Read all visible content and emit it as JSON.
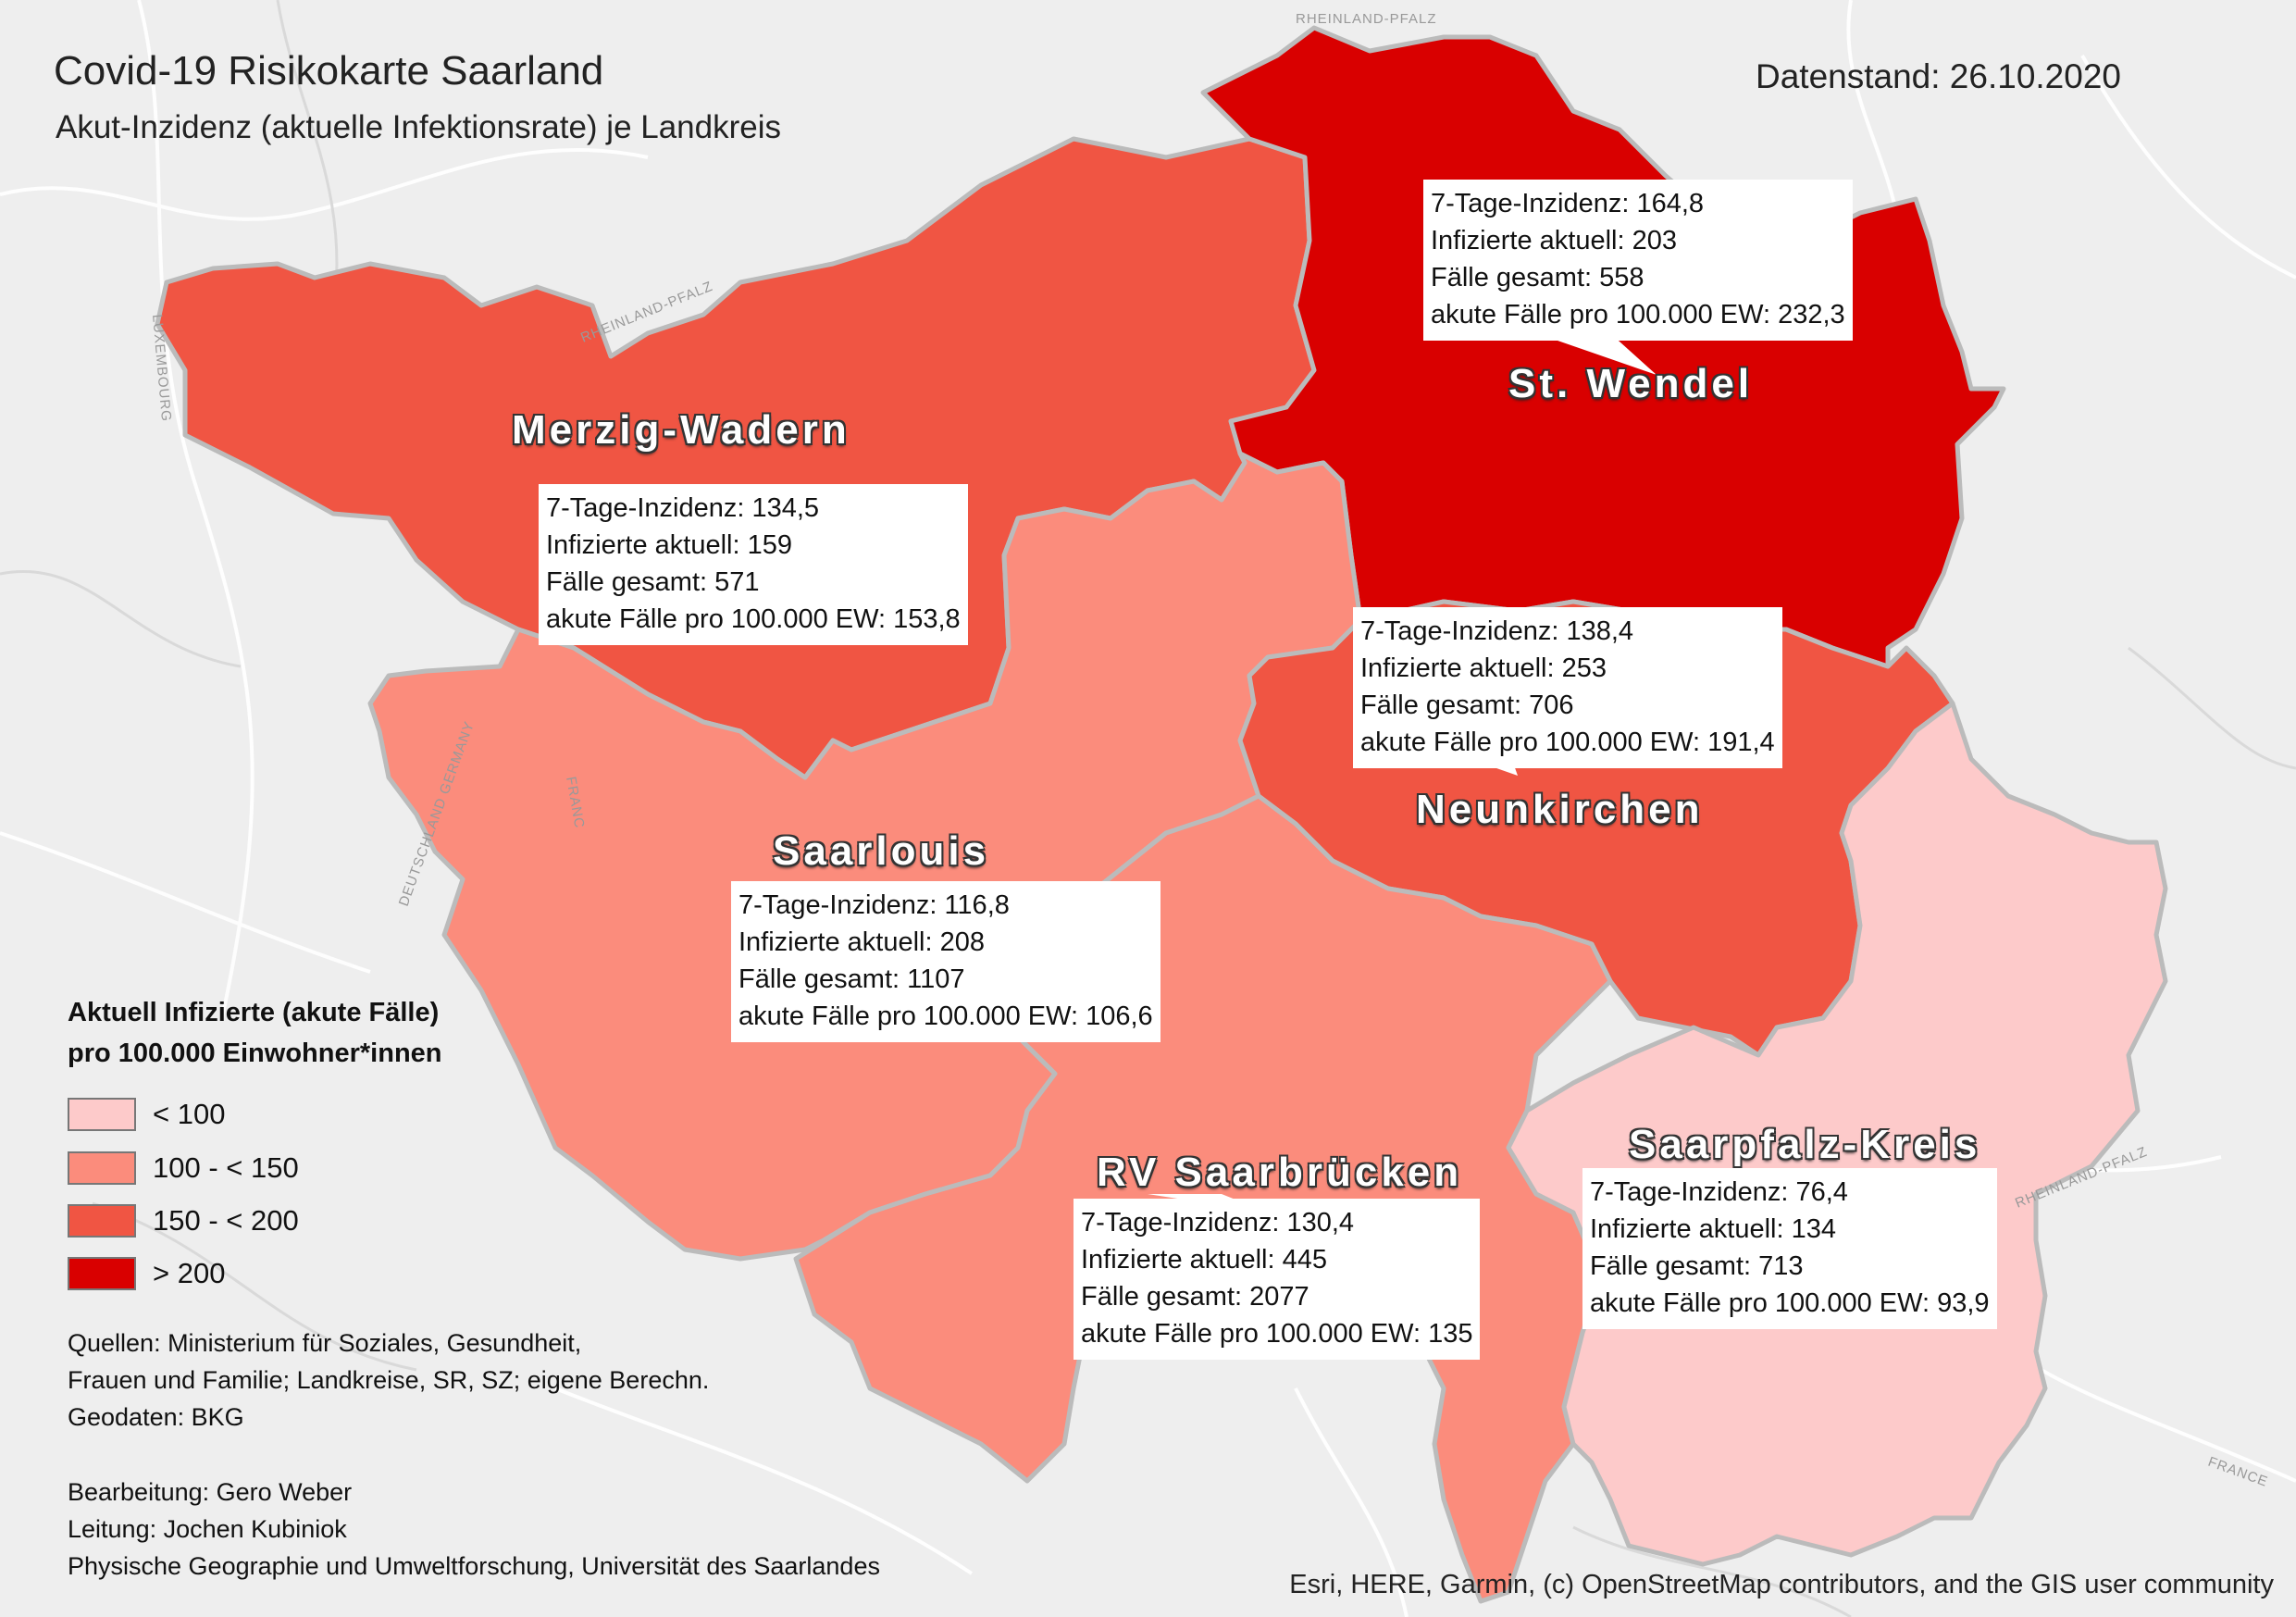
{
  "header": {
    "title": "Covid-19 Risikokarte Saarland",
    "subtitle": "Akut-Inzidenz (aktuelle Infektionsrate) je Landkreis",
    "date": "Datenstand: 26.10.2020"
  },
  "colors": {
    "below_100": "#fdcaca",
    "100_150": "#fb8c7c",
    "150_200": "#f05543",
    "above_200": "#d90000",
    "background": "#eeeeee",
    "border": "#bbbbbb"
  },
  "districts": [
    {
      "id": "merzig-wadern",
      "name": "Merzig-Wadern",
      "class": "150_200",
      "incidence_label": "7-Tage-Inzidenz: 134,5",
      "infected_label": "Infizierte aktuell: 159",
      "total_label": "Fälle gesamt: 571",
      "per100k_label": "akute Fälle pro 100.000 EW: 153,8"
    },
    {
      "id": "st-wendel",
      "name": "St. Wendel",
      "class": "above_200",
      "incidence_label": "7-Tage-Inzidenz: 164,8",
      "infected_label": "Infizierte aktuell: 203",
      "total_label": "Fälle gesamt: 558",
      "per100k_label": "akute Fälle pro 100.000 EW: 232,3"
    },
    {
      "id": "saarlouis",
      "name": "Saarlouis",
      "class": "100_150",
      "incidence_label": "7-Tage-Inzidenz: 116,8",
      "infected_label": "Infizierte aktuell: 208",
      "total_label": "Fälle gesamt: 1107",
      "per100k_label": "akute Fälle pro 100.000 EW: 106,6"
    },
    {
      "id": "neunkirchen",
      "name": "Neunkirchen",
      "class": "150_200",
      "incidence_label": "7-Tage-Inzidenz: 138,4",
      "infected_label": "Infizierte aktuell: 253",
      "total_label": "Fälle gesamt: 706",
      "per100k_label": "akute Fälle pro 100.000 EW: 191,4"
    },
    {
      "id": "rv-saarbruecken",
      "name": "RV Saarbrücken",
      "class": "100_150",
      "incidence_label": "7-Tage-Inzidenz: 130,4",
      "infected_label": "Infizierte aktuell: 445",
      "total_label": "Fälle gesamt: 2077",
      "per100k_label": "akute Fälle pro 100.000 EW: 135"
    },
    {
      "id": "saarpfalz-kreis",
      "name": "Saarpfalz-Kreis",
      "class": "below_100",
      "incidence_label": "7-Tage-Inzidenz: 76,4",
      "infected_label": "Infizierte aktuell: 134",
      "total_label": "Fälle gesamt: 713",
      "per100k_label": "akute Fälle pro 100.000 EW: 93,9"
    }
  ],
  "legend": {
    "title_line1": "Aktuell Infizierte (akute Fälle)",
    "title_line2": "pro 100.000 Einwohner*innen",
    "items": [
      {
        "label": "< 100",
        "color": "#fdcaca"
      },
      {
        "label": "100 - < 150",
        "color": "#fb8c7c"
      },
      {
        "label": "150 - < 200",
        "color": "#f05543"
      },
      {
        "label": "> 200",
        "color": "#d90000"
      }
    ]
  },
  "sources": {
    "line1": "Quellen: Ministerium für Soziales, Gesundheit,",
    "line2": "Frauen und Familie; Landkreise, SR, SZ; eigene Berechn.",
    "line3": "Geodaten: BKG"
  },
  "credits": {
    "line1": "Bearbeitung: Gero Weber",
    "line2": "Leitung: Jochen Kubiniok",
    "line3": "Physische Geographie und Umweltforschung, Universität des Saarlandes"
  },
  "attribution": "Esri, HERE, Garmin, (c) OpenStreetMap contributors, and the GIS user community",
  "basemap_labels": {
    "rheinland_pfalz": "RHEINLAND-PFALZ",
    "luxembourg": "LUXEMBOURG",
    "deutschland_germany": "DEUTSCHLAND GERMANY",
    "france": "FRANCE",
    "franc": "FRANC"
  }
}
